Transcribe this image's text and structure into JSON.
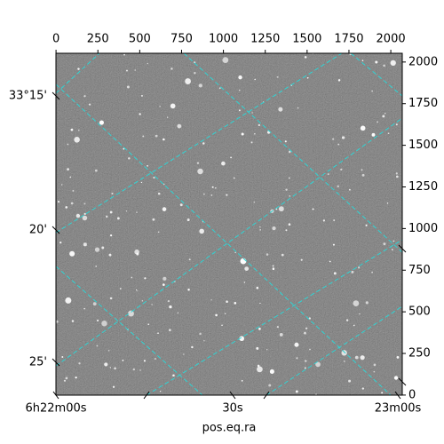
{
  "chart_data": {
    "type": "image",
    "xlabel": "pos.eq.ra",
    "xlim": [
      -0.5,
      2068.5
    ],
    "xticks": [
      0,
      250,
      500,
      750,
      1000,
      1250,
      1500,
      1750,
      2000
    ],
    "ylim": [
      -0.5,
      2052.5
    ],
    "yticks": [
      0,
      250,
      500,
      750,
      1000,
      1250,
      1500,
      1750,
      2000
    ],
    "ra_labels": [
      "6h22m00s",
      "30s",
      "23m00s"
    ],
    "dec_labels": [
      "33°15'",
      "20'",
      "25'"
    ],
    "grid_color": "#2fd4d4"
  }
}
